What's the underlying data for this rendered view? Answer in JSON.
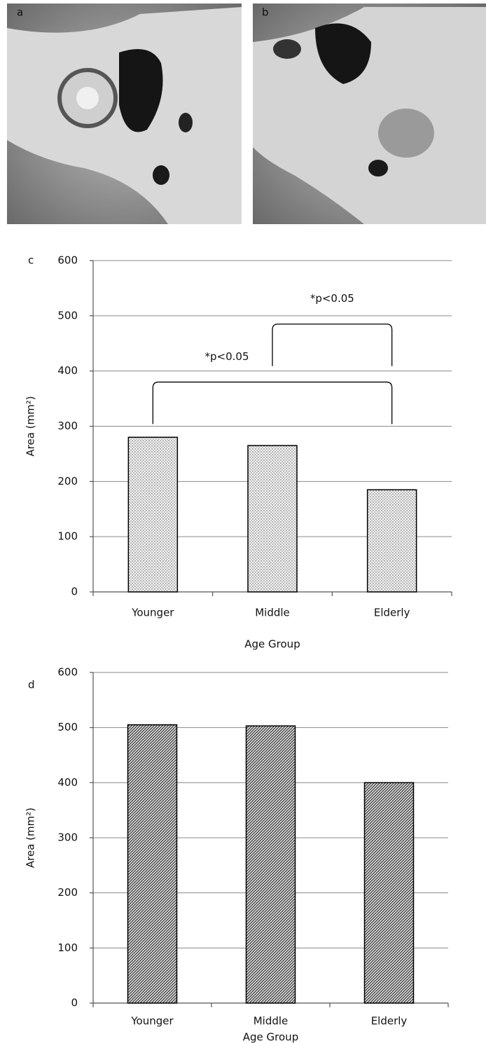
{
  "panel_labels": [
    "a",
    "b"
  ],
  "chart_data": [
    {
      "type": "bar",
      "panel_label": "c",
      "y_label": "Area (mm²)",
      "x_label": "Age Group",
      "categories": [
        "Younger",
        "Middle",
        "Elderly"
      ],
      "values": [
        280,
        265,
        185
      ],
      "pattern": "dots",
      "ylim": [
        0,
        600
      ],
      "yticks": [
        0,
        100,
        200,
        300,
        400,
        500,
        600
      ],
      "grid": true,
      "annotations": [
        {
          "text": "*p<0.05",
          "from": "Younger",
          "to": "Elderly",
          "y": 380
        },
        {
          "text": "*p<0.05",
          "from": "Middle",
          "to": "Elderly",
          "y": 485
        }
      ]
    },
    {
      "type": "bar",
      "panel_label": "d",
      "y_label": "Area (mm²)",
      "x_label": "Age Group",
      "categories": [
        "Younger",
        "Middle",
        "Elderly"
      ],
      "values": [
        505,
        503,
        400
      ],
      "pattern": "hatch",
      "ylim": [
        0,
        600
      ],
      "yticks": [
        0,
        100,
        200,
        300,
        400,
        500,
        600
      ],
      "grid": true
    }
  ]
}
